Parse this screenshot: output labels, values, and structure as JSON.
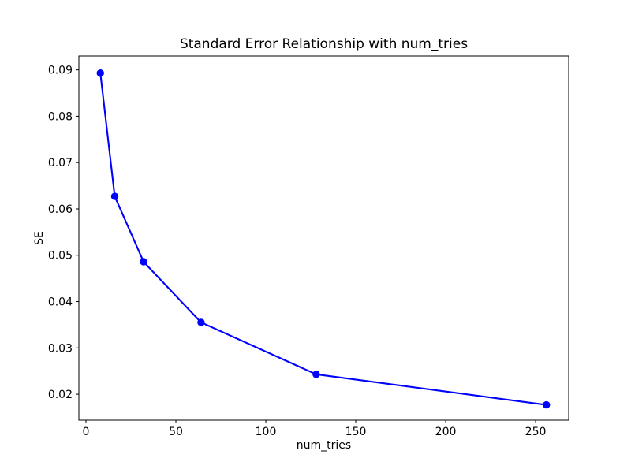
{
  "chart_data": {
    "type": "line",
    "title": "Standard Error Relationship with num_tries",
    "xlabel": "num_tries",
    "ylabel": "SE",
    "x": [
      8,
      16,
      32,
      64,
      128,
      256
    ],
    "y": [
      0.0893,
      0.0627,
      0.0486,
      0.0355,
      0.0243,
      0.0177
    ],
    "series": [
      {
        "name": "SE",
        "x": [
          8,
          16,
          32,
          64,
          128,
          256
        ],
        "values": [
          0.0893,
          0.0627,
          0.0486,
          0.0355,
          0.0243,
          0.0177
        ]
      }
    ],
    "xlim": [
      -3.95,
      268.4
    ],
    "ylim": [
      0.0144,
      0.093
    ],
    "xticks": [
      0,
      50,
      100,
      150,
      200,
      250
    ],
    "xtick_labels": [
      "0",
      "50",
      "100",
      "150",
      "200",
      "250"
    ],
    "yticks": [
      0.02,
      0.03,
      0.04,
      0.05,
      0.06,
      0.07,
      0.08,
      0.09
    ],
    "ytick_labels": [
      "0.02",
      "0.03",
      "0.04",
      "0.05",
      "0.06",
      "0.07",
      "0.08",
      "0.09"
    ],
    "line_color": "#0000ff",
    "spine_color": "#000000",
    "background_color": "#ffffff",
    "marker": "o",
    "grid": false,
    "legend": null
  }
}
